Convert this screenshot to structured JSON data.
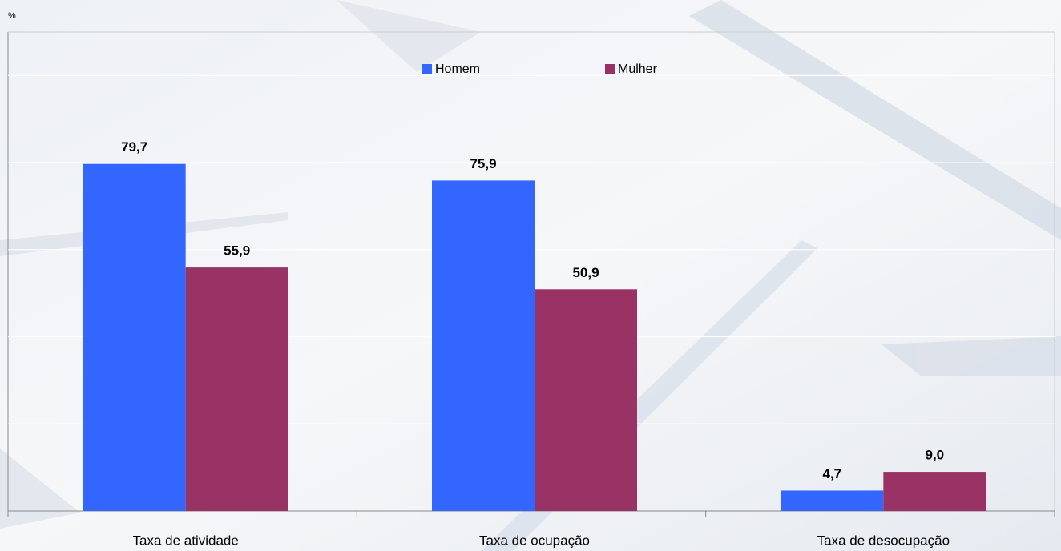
{
  "chart_data": {
    "type": "bar",
    "y_label": "%",
    "categories": [
      "Taxa de atividade",
      "Taxa de ocupação",
      "Taxa de desocupação"
    ],
    "series": [
      {
        "name": "Homem",
        "color": "#3366ff",
        "values": [
          79.7,
          75.9,
          4.7
        ],
        "value_labels": [
          "79,7",
          "75,9",
          "4,7"
        ]
      },
      {
        "name": "Mulher",
        "color": "#993366",
        "values": [
          55.9,
          50.9,
          9.0
        ],
        "value_labels": [
          "55,9",
          "50,9",
          "9,0"
        ]
      }
    ],
    "ylim": [
      0,
      110
    ],
    "yticks": [
      0,
      20,
      40,
      60,
      80,
      100
    ],
    "grid": true,
    "legend": "top"
  }
}
